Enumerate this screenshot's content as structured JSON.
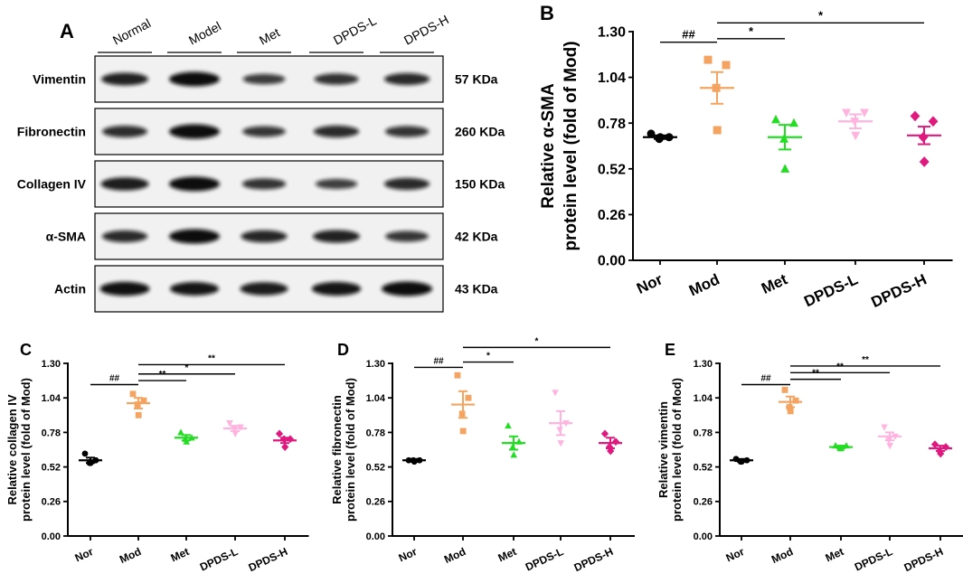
{
  "blot": {
    "label": "A",
    "lanes": [
      "Normal",
      "Model",
      "Met",
      "DPDS-L",
      "DPDS-H"
    ],
    "rows": [
      {
        "protein": "Vimentin",
        "size": "57 KDa",
        "intensity": [
          0.8,
          1.0,
          0.55,
          0.65,
          0.72
        ]
      },
      {
        "protein": "Fibronectin",
        "size": "260 KDa",
        "intensity": [
          0.7,
          1.0,
          0.6,
          0.72,
          0.62
        ]
      },
      {
        "protein": "Collagen IV",
        "size": "150 KDa",
        "intensity": [
          0.85,
          1.0,
          0.62,
          0.52,
          0.72
        ]
      },
      {
        "protein": "α-SMA",
        "size": "42 KDa",
        "intensity": [
          0.72,
          1.0,
          0.75,
          0.8,
          0.6
        ]
      },
      {
        "protein": "Actin",
        "size": "43 KDa",
        "intensity": [
          0.95,
          0.9,
          0.85,
          0.92,
          1.0
        ]
      }
    ]
  },
  "colors": {
    "Nor": "#000000",
    "Mod": "#F4A460",
    "Met": "#22DD22",
    "DPDS-L": "#FFB3DE",
    "DPDS-H": "#E0197F"
  },
  "chart_data": [
    {
      "panel": "B",
      "type": "scatter",
      "ylabel": [
        "Relative α-SMA",
        "protein level (fold of Mod)"
      ],
      "categories": [
        "Nor",
        "Mod",
        "Met",
        "DPDS-L",
        "DPDS-H"
      ],
      "ylim": [
        0,
        1.3
      ],
      "yticks": [
        "0.00",
        "0.26",
        "0.52",
        "0.78",
        "1.04",
        "1.30"
      ],
      "series": [
        {
          "name": "Nor",
          "mean": 0.7,
          "sem": 0.01,
          "points": [
            0.72,
            0.7,
            0.69,
            0.7
          ]
        },
        {
          "name": "Mod",
          "mean": 0.98,
          "sem": 0.09,
          "points": [
            1.14,
            1.11,
            0.98,
            0.74
          ]
        },
        {
          "name": "Met",
          "mean": 0.7,
          "sem": 0.07,
          "points": [
            0.8,
            0.78,
            0.69,
            0.52
          ]
        },
        {
          "name": "DPDS-L",
          "mean": 0.79,
          "sem": 0.04,
          "points": [
            0.84,
            0.84,
            0.79,
            0.71
          ]
        },
        {
          "name": "DPDS-H",
          "mean": 0.71,
          "sem": 0.05,
          "points": [
            0.82,
            0.79,
            0.7,
            0.56
          ]
        }
      ],
      "annotations": [
        {
          "from": 0,
          "to": 1,
          "label": "##",
          "level": 1.24
        },
        {
          "from": 1,
          "to": 2,
          "label": "*",
          "level": 1.26
        },
        {
          "from": 1,
          "to": 4,
          "label": "*",
          "level": 1.35
        }
      ]
    },
    {
      "panel": "C",
      "type": "scatter",
      "ylabel": [
        "Relative collagen IV",
        "protein level (fold of Mod)"
      ],
      "categories": [
        "Nor",
        "Mod",
        "Met",
        "DPDS-L",
        "DPDS-H"
      ],
      "ylim": [
        0,
        1.3
      ],
      "yticks": [
        "0.00",
        "0.26",
        "0.52",
        "0.78",
        "1.04",
        "1.30"
      ],
      "series": [
        {
          "name": "Nor",
          "mean": 0.57,
          "sem": 0.02,
          "points": [
            0.62,
            0.57,
            0.55,
            0.55
          ]
        },
        {
          "name": "Mod",
          "mean": 1.0,
          "sem": 0.04,
          "points": [
            1.07,
            1.02,
            0.99,
            0.91
          ]
        },
        {
          "name": "Met",
          "mean": 0.74,
          "sem": 0.02,
          "points": [
            0.78,
            0.74,
            0.73,
            0.71
          ]
        },
        {
          "name": "DPDS-L",
          "mean": 0.81,
          "sem": 0.02,
          "points": [
            0.85,
            0.82,
            0.81,
            0.77
          ]
        },
        {
          "name": "DPDS-H",
          "mean": 0.72,
          "sem": 0.02,
          "points": [
            0.77,
            0.73,
            0.73,
            0.67
          ]
        }
      ],
      "annotations": [
        {
          "from": 0,
          "to": 1,
          "label": "##",
          "level": 1.14
        },
        {
          "from": 1,
          "to": 2,
          "label": "**",
          "level": 1.17
        },
        {
          "from": 1,
          "to": 3,
          "label": "*",
          "level": 1.22
        },
        {
          "from": 1,
          "to": 4,
          "label": "**",
          "level": 1.29
        }
      ]
    },
    {
      "panel": "D",
      "type": "scatter",
      "ylabel": [
        "Relative fibronectin",
        "protein level (fold of Mod)"
      ],
      "categories": [
        "Nor",
        "Mod",
        "Met",
        "DPDS-L",
        "DPDS-H"
      ],
      "ylim": [
        0,
        1.3
      ],
      "yticks": [
        "0.00",
        "0.26",
        "0.52",
        "0.78",
        "1.04",
        "1.30"
      ],
      "series": [
        {
          "name": "Nor",
          "mean": 0.57,
          "sem": 0.01,
          "points": [
            0.57,
            0.57,
            0.57,
            0.56
          ]
        },
        {
          "name": "Mod",
          "mean": 0.99,
          "sem": 0.1,
          "points": [
            1.21,
            1.04,
            0.92,
            0.79
          ]
        },
        {
          "name": "Met",
          "mean": 0.7,
          "sem": 0.05,
          "points": [
            0.83,
            0.71,
            0.67,
            0.61
          ]
        },
        {
          "name": "DPDS-L",
          "mean": 0.85,
          "sem": 0.09,
          "points": [
            1.08,
            0.85,
            0.8,
            0.7
          ]
        },
        {
          "name": "DPDS-H",
          "mean": 0.7,
          "sem": 0.04,
          "points": [
            0.77,
            0.71,
            0.67,
            0.64
          ]
        }
      ],
      "annotations": [
        {
          "from": 0,
          "to": 1,
          "label": "##",
          "level": 1.27
        },
        {
          "from": 1,
          "to": 2,
          "label": "*",
          "level": 1.31
        },
        {
          "from": 1,
          "to": 4,
          "label": "*",
          "level": 1.42
        }
      ]
    },
    {
      "panel": "E",
      "type": "scatter",
      "ylabel": [
        "Relative vimentin",
        "protein level (fold of Mod)"
      ],
      "categories": [
        "Nor",
        "Mod",
        "Met",
        "DPDS-L",
        "DPDS-H"
      ],
      "ylim": [
        0,
        1.3
      ],
      "yticks": [
        "0.00",
        "0.26",
        "0.52",
        "0.78",
        "1.04",
        "1.30"
      ],
      "series": [
        {
          "name": "Nor",
          "mean": 0.57,
          "sem": 0.01,
          "points": [
            0.58,
            0.57,
            0.56,
            0.56
          ]
        },
        {
          "name": "Mod",
          "mean": 1.01,
          "sem": 0.04,
          "points": [
            1.1,
            1.02,
            0.97,
            0.94
          ]
        },
        {
          "name": "Met",
          "mean": 0.67,
          "sem": 0.01,
          "points": [
            0.68,
            0.68,
            0.66,
            0.66
          ]
        },
        {
          "name": "DPDS-L",
          "mean": 0.75,
          "sem": 0.03,
          "points": [
            0.82,
            0.75,
            0.72,
            0.68
          ]
        },
        {
          "name": "DPDS-H",
          "mean": 0.66,
          "sem": 0.02,
          "points": [
            0.69,
            0.67,
            0.64,
            0.62
          ]
        }
      ],
      "annotations": [
        {
          "from": 0,
          "to": 1,
          "label": "##",
          "level": 1.14
        },
        {
          "from": 1,
          "to": 2,
          "label": "**",
          "level": 1.18
        },
        {
          "from": 1,
          "to": 3,
          "label": "**",
          "level": 1.23
        },
        {
          "from": 1,
          "to": 4,
          "label": "**",
          "level": 1.28
        }
      ]
    }
  ]
}
